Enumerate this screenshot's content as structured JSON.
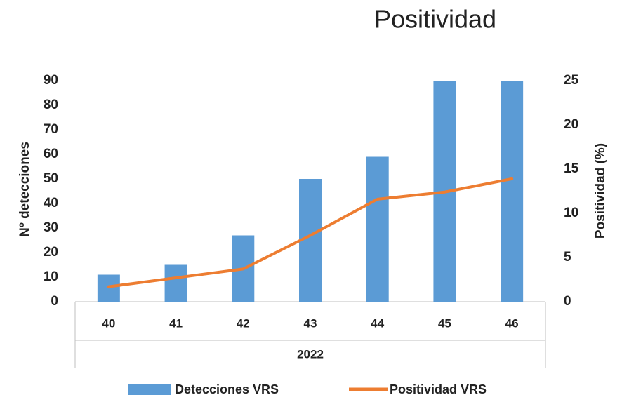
{
  "chart_data": {
    "type": "bar-line",
    "title": "Positividad",
    "categories": [
      "40",
      "41",
      "42",
      "43",
      "44",
      "45",
      "46"
    ],
    "group_label": "2022",
    "ylabel": "Nº detecciones",
    "y2label": "Positividad (%)",
    "series": [
      {
        "name": "Detecciones VRS",
        "type": "bar",
        "color": "#5b9bd5",
        "values": [
          11,
          15,
          27,
          50,
          59,
          90,
          90
        ]
      },
      {
        "name": "Positividad VRS",
        "type": "line",
        "axis": "y2",
        "color": "#ed7d31",
        "values": [
          1.7,
          2.7,
          3.7,
          7.5,
          11.6,
          12.4,
          13.9
        ]
      }
    ],
    "ylim": [
      0,
      90
    ],
    "yticks": [
      0,
      10,
      20,
      30,
      40,
      50,
      60,
      70,
      80,
      90
    ],
    "y2lim": [
      0,
      25
    ],
    "y2ticks": [
      0,
      5,
      10,
      15,
      20,
      25
    ],
    "grid": false,
    "legend": "bottom"
  }
}
